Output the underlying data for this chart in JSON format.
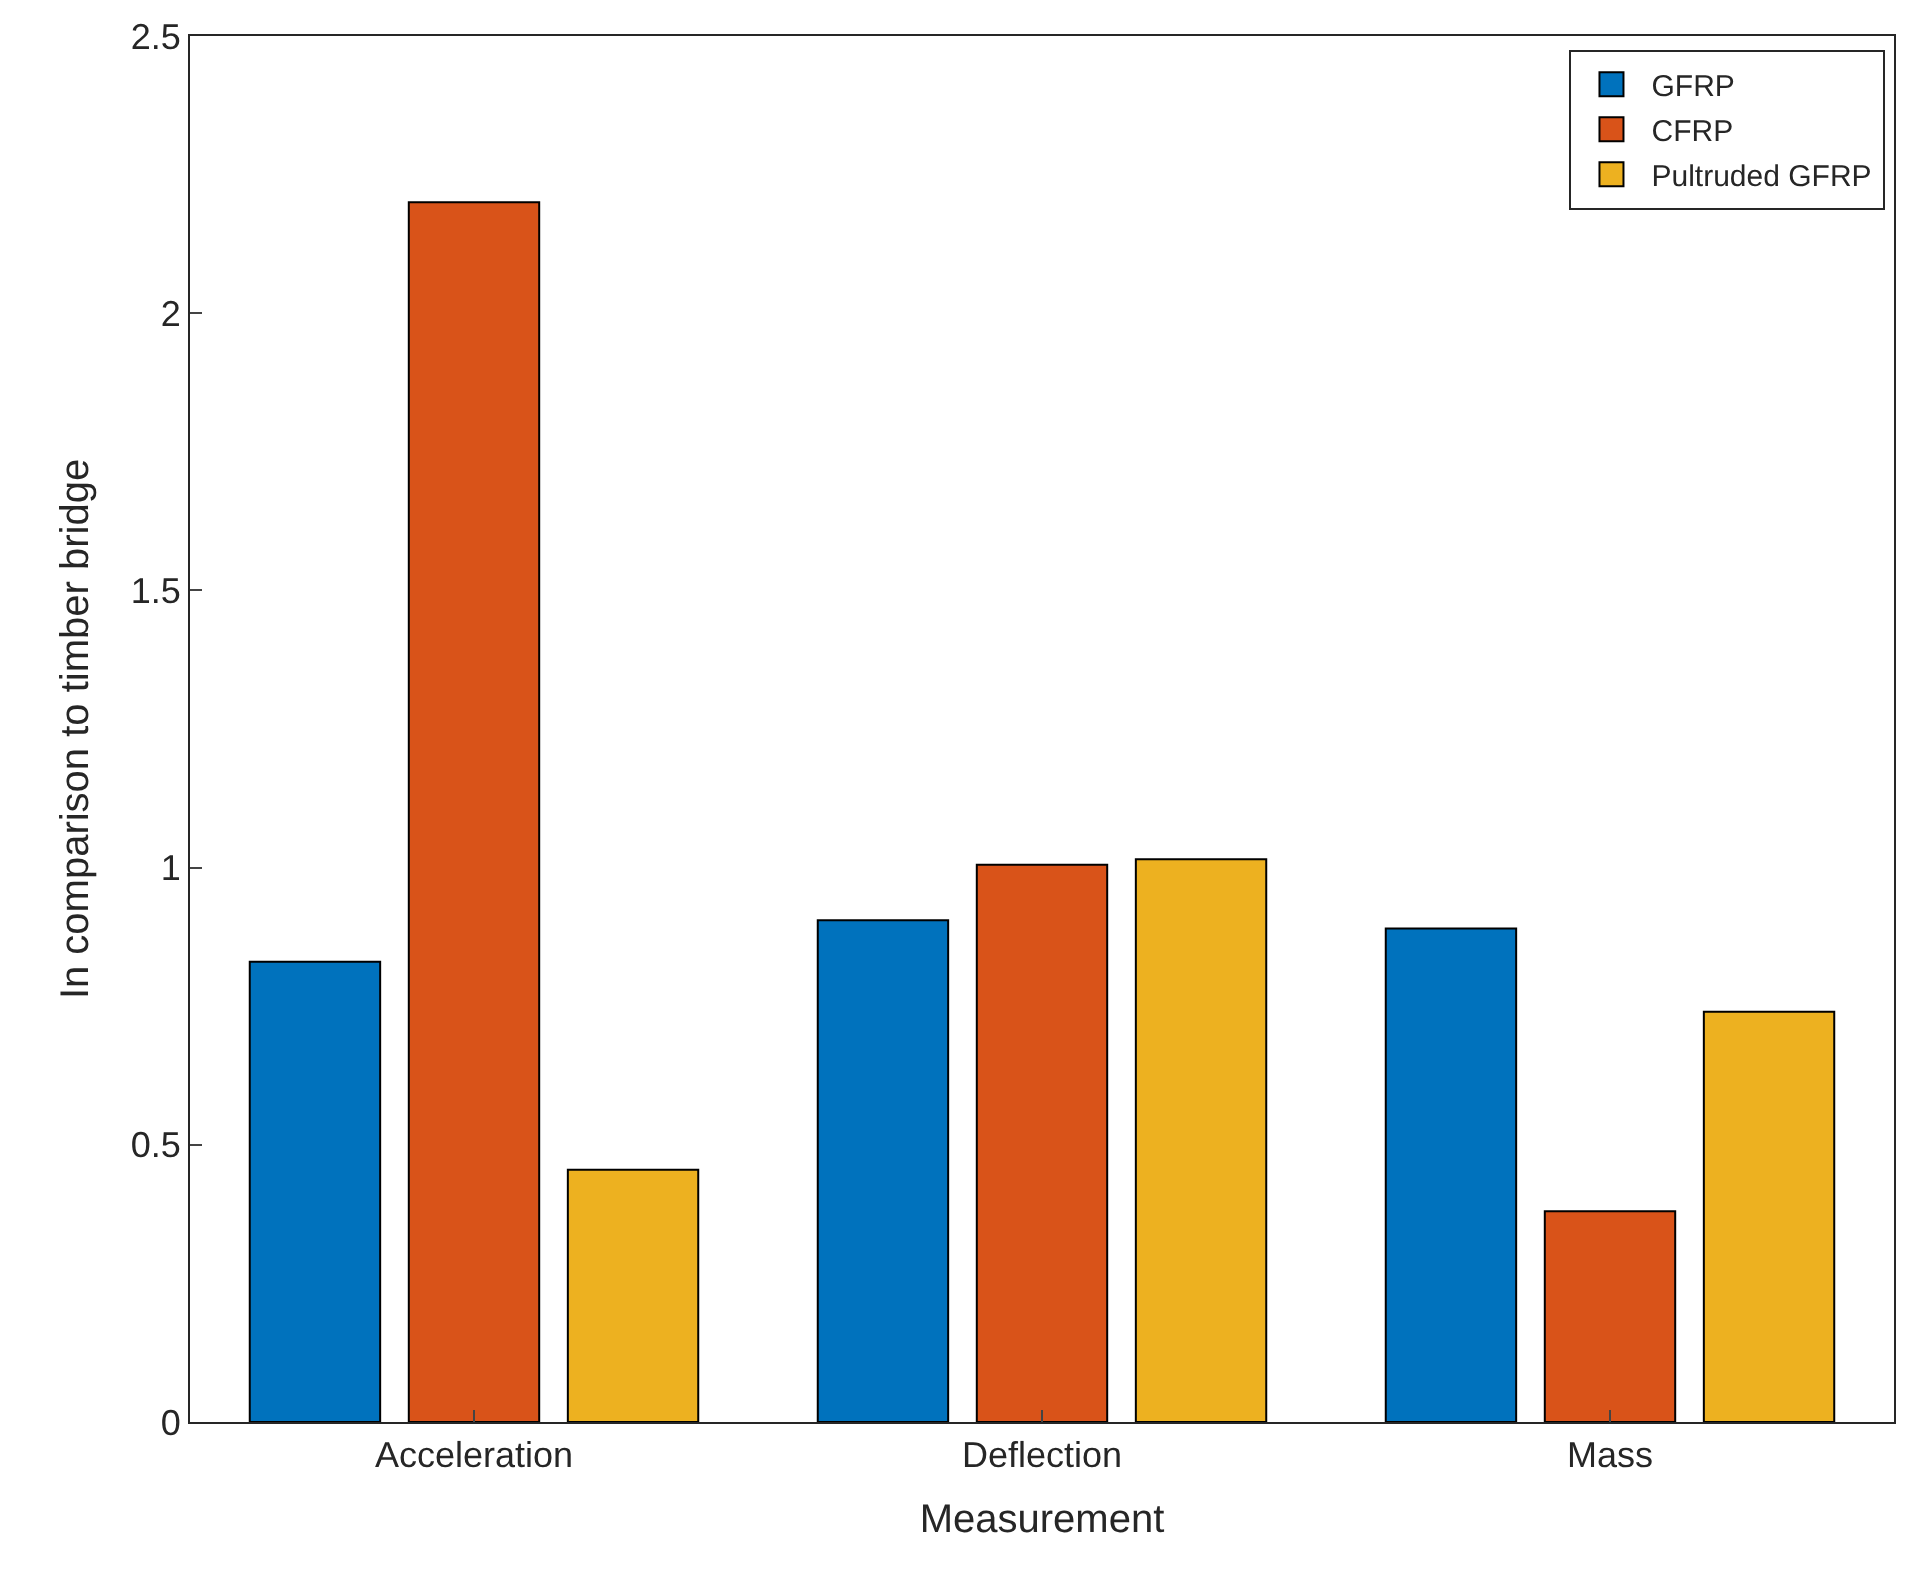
{
  "chart_data": {
    "type": "bar",
    "xlabel": "Measurement",
    "ylabel": "In comparison to timber bridge",
    "categories": [
      "Acceleration",
      "Deflection",
      "Mass"
    ],
    "series": [
      {
        "name": "GFRP",
        "color": "#0072bd",
        "values": [
          0.83,
          0.905,
          0.89
        ]
      },
      {
        "name": "CFRP",
        "color": "#d95319",
        "values": [
          2.2,
          1.005,
          0.38
        ]
      },
      {
        "name": "Pultruded GFRP",
        "color": "#edb120",
        "values": [
          0.455,
          1.015,
          0.74
        ]
      }
    ],
    "ylim": [
      0,
      2.5
    ],
    "yticks": [
      0,
      0.5,
      1,
      1.5,
      2,
      2.5
    ],
    "legend": "top right"
  }
}
